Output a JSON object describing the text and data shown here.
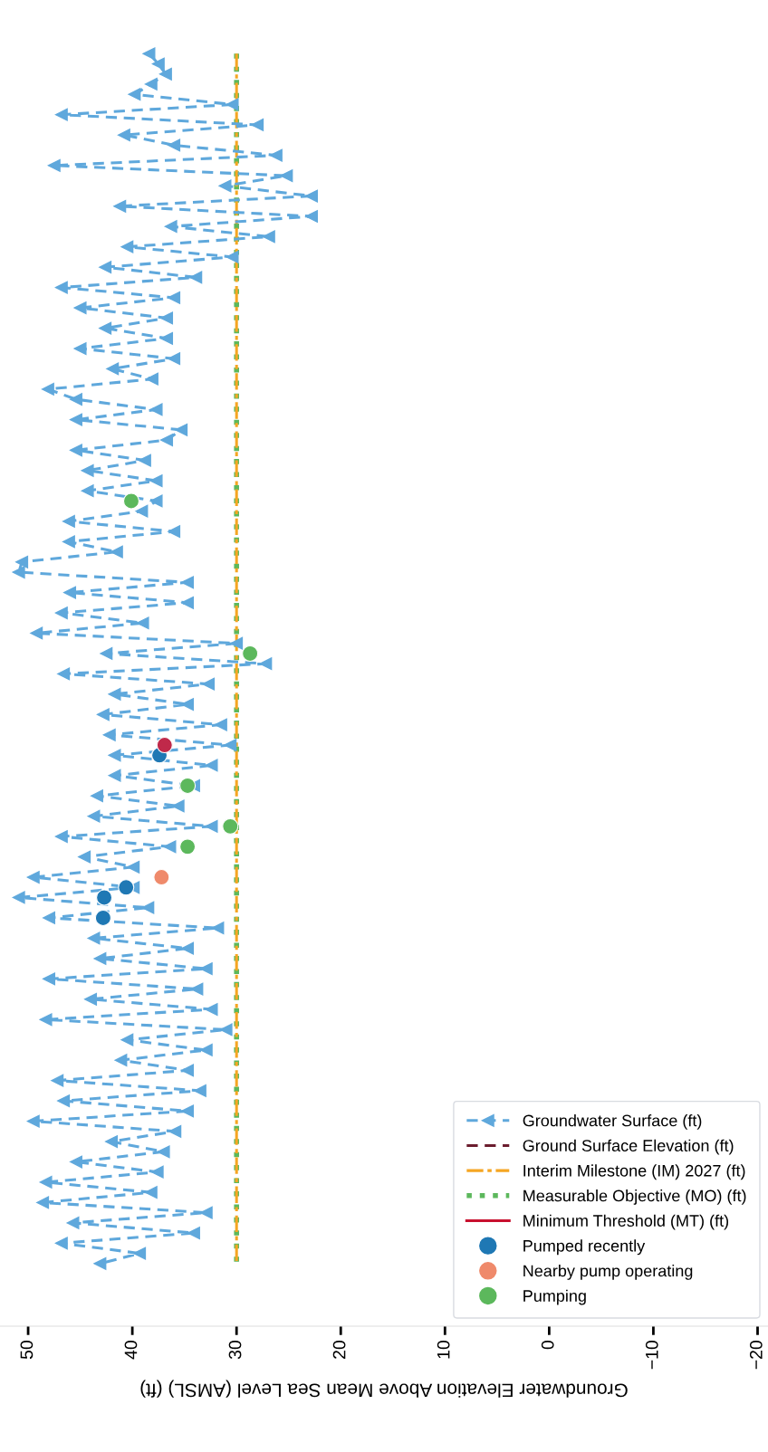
{
  "chart_data": {
    "type": "line",
    "orientation": "horizontal",
    "xlabel": "Groundwater Elevation Above Mean Sea Level (AMSL) (ft)",
    "categories": [
      null,
      null,
      null,
      null,
      null,
      null,
      null,
      null,
      null,
      null,
      null,
      null,
      null,
      null,
      null,
      null,
      null,
      null,
      null,
      null,
      null,
      null,
      null,
      null,
      null,
      null,
      null,
      null,
      null,
      null,
      null,
      null,
      null,
      null,
      null,
      null,
      null,
      null,
      null,
      null,
      null,
      null,
      null,
      null,
      null,
      null,
      null,
      null,
      null,
      null,
      null,
      null,
      null,
      null,
      null,
      null,
      null,
      null,
      null,
      null,
      null,
      null,
      null,
      null,
      null,
      null,
      null,
      null,
      null,
      null,
      null,
      null,
      null,
      null,
      null,
      null,
      null,
      null,
      null,
      null,
      null,
      null,
      null,
      null,
      null,
      null,
      null,
      null,
      null,
      null,
      null,
      null,
      null,
      null,
      null,
      null,
      null,
      null,
      null,
      null,
      null,
      null,
      null,
      null,
      null,
      null,
      null,
      null,
      null,
      null,
      null,
      null,
      null,
      null,
      null,
      null,
      null,
      null,
      null,
      null
    ],
    "xlim": [
      52.7,
      -21
    ],
    "xticks": [
      50,
      40,
      30,
      20,
      10,
      0,
      -10,
      -20
    ],
    "tick_labels": "x",
    "legend": "bottom right",
    "series": [
      {
        "name": "Groundwater Surface (ft)",
        "color": "#5fa8dc",
        "line_style": "dashed",
        "marker": "triangle",
        "values": [
          38.4,
          37.5,
          36.8,
          38.2,
          39.8,
          30.4,
          46.8,
          28.0,
          40.8,
          36.0,
          26.2,
          47.5,
          25.2,
          31.1,
          22.8,
          41.2,
          22.8,
          36.3,
          26.9,
          40.5,
          30.4,
          42.6,
          33.9,
          46.8,
          36.0,
          45.0,
          36.7,
          42.6,
          36.7,
          45.0,
          36.0,
          41.9,
          38.1,
          48.1,
          45.4,
          37.7,
          45.4,
          35.3,
          36.7,
          45.4,
          38.8,
          44.3,
          37.7,
          44.3,
          37.7,
          39.1,
          46.1,
          36.0,
          46.1,
          41.5,
          50.6,
          50.9,
          34.7,
          46.0,
          34.7,
          46.8,
          39.0,
          49.2,
          30.0,
          42.5,
          27.2,
          46.6,
          32.7,
          41.7,
          34.7,
          42.8,
          31.5,
          42.2,
          30.6,
          41.7,
          32.4,
          41.7,
          34.1,
          43.4,
          35.6,
          43.7,
          32.4,
          46.8,
          36.4,
          44.6,
          39.9,
          49.5,
          39.9,
          50.9,
          38.5,
          48.0,
          31.8,
          43.7,
          34.7,
          43.1,
          32.9,
          48.0,
          33.8,
          44.0,
          32.4,
          48.3,
          31.0,
          40.5,
          32.9,
          41.1,
          34.7,
          47.2,
          33.5,
          46.6,
          34.7,
          49.5,
          35.9,
          42.0,
          37.0,
          45.4,
          37.6,
          48.3,
          38.2,
          48.6,
          32.9,
          45.7,
          34.1,
          46.8,
          39.3,
          43.1
        ]
      },
      {
        "name": "Ground Surface Elevation (ft)",
        "color": "#6b1d2e",
        "line_style": "dashed",
        "values": [
          null,
          null,
          null,
          null,
          null,
          null,
          null,
          null,
          null,
          null,
          null,
          null,
          null,
          null,
          null,
          null,
          null,
          null,
          null,
          null,
          null,
          null,
          null,
          null,
          null,
          null,
          null,
          null,
          null,
          null,
          null,
          null,
          null,
          null,
          null,
          null,
          null,
          null,
          null,
          null,
          null,
          null,
          null,
          null,
          null,
          null,
          null,
          null,
          null,
          null,
          null,
          null,
          null,
          null,
          null,
          null,
          null,
          null,
          null,
          null,
          null,
          null,
          null,
          null,
          null,
          null,
          null,
          null,
          null,
          null,
          null,
          null,
          null,
          null,
          null,
          null,
          null,
          null,
          null,
          null,
          null,
          null,
          null,
          null,
          null,
          null,
          null,
          null,
          null,
          null,
          null,
          null,
          null,
          null,
          null,
          null,
          null,
          null,
          null,
          null,
          null,
          null,
          null,
          null,
          null,
          null,
          null,
          null,
          null,
          null,
          null,
          null,
          null,
          null,
          null,
          null,
          null,
          null,
          null,
          null
        ]
      },
      {
        "name": "Interim Milestone (IM) 2027 (ft)",
        "color": "#f5a623",
        "line_style": "dashdot",
        "values": [
          30,
          30,
          30,
          30,
          30,
          30,
          30,
          30,
          30,
          30,
          30,
          30,
          30,
          30,
          30,
          30,
          30,
          30,
          30,
          30,
          30,
          30,
          30,
          30,
          30,
          30,
          30,
          30,
          30,
          30,
          30,
          30,
          30,
          30,
          30,
          30,
          30,
          30,
          30,
          30,
          30,
          30,
          30,
          30,
          30,
          30,
          30,
          30,
          30,
          30,
          30,
          30,
          30,
          30,
          30,
          30,
          30,
          30,
          30,
          30,
          30,
          30,
          30,
          30,
          30,
          30,
          30,
          30,
          30,
          30,
          30,
          30,
          30,
          30,
          30,
          30,
          30,
          30,
          30,
          30,
          30,
          30,
          30,
          30,
          30,
          30,
          30,
          30,
          30,
          30,
          30,
          30,
          30,
          30,
          30,
          30,
          30,
          30,
          30,
          30,
          30,
          30,
          30,
          30,
          30,
          30,
          30,
          30,
          30,
          30,
          30,
          30,
          30,
          30,
          30,
          30,
          30,
          30,
          30,
          30
        ]
      },
      {
        "name": "Measurable Objective (MO) (ft)",
        "color": "#5cb85c",
        "line_style": "dotted",
        "values": [
          30,
          30,
          30,
          30,
          30,
          30,
          30,
          30,
          30,
          30,
          30,
          30,
          30,
          30,
          30,
          30,
          30,
          30,
          30,
          30,
          30,
          30,
          30,
          30,
          30,
          30,
          30,
          30,
          30,
          30,
          30,
          30,
          30,
          30,
          30,
          30,
          30,
          30,
          30,
          30,
          30,
          30,
          30,
          30,
          30,
          30,
          30,
          30,
          30,
          30,
          30,
          30,
          30,
          30,
          30,
          30,
          30,
          30,
          30,
          30,
          30,
          30,
          30,
          30,
          30,
          30,
          30,
          30,
          30,
          30,
          30,
          30,
          30,
          30,
          30,
          30,
          30,
          30,
          30,
          30,
          30,
          30,
          30,
          30,
          30,
          30,
          30,
          30,
          30,
          30,
          30,
          30,
          30,
          30,
          30,
          30,
          30,
          30,
          30,
          30,
          30,
          30,
          30,
          30,
          30,
          30,
          30,
          30,
          30,
          30,
          30,
          30,
          30,
          30,
          30,
          30,
          30,
          30,
          30,
          30
        ]
      },
      {
        "name": "Minimum Threshold (MT) (ft)",
        "color": "#c8102e",
        "line_style": "solid",
        "values": [
          null,
          null,
          null,
          null,
          null,
          null,
          null,
          null,
          null,
          null,
          null,
          null,
          null,
          null,
          null,
          null,
          null,
          null,
          null,
          null,
          null,
          null,
          null,
          null,
          null,
          null,
          null,
          null,
          null,
          null,
          null,
          null,
          null,
          null,
          null,
          null,
          null,
          null,
          null,
          null,
          null,
          null,
          null,
          null,
          null,
          null,
          null,
          null,
          null,
          null,
          null,
          null,
          null,
          null,
          null,
          null,
          null,
          null,
          null,
          null,
          null,
          null,
          null,
          null,
          null,
          null,
          null,
          null,
          null,
          null,
          null,
          null,
          null,
          null,
          null,
          null,
          null,
          null,
          null,
          null,
          null,
          null,
          null,
          null,
          null,
          null,
          null,
          null,
          null,
          null,
          null,
          null,
          null,
          null,
          null,
          null,
          null,
          null,
          null,
          null,
          null,
          null,
          null,
          null,
          null,
          null,
          null,
          null,
          null,
          null,
          null,
          null,
          null,
          null,
          null,
          null,
          null,
          null,
          null,
          null
        ]
      },
      {
        "name": "Pumped recently",
        "type": "scatter",
        "color": "#1f78b4",
        "values": [
          null,
          null,
          null,
          null,
          null,
          null,
          null,
          null,
          null,
          null,
          null,
          null,
          null,
          null,
          null,
          null,
          null,
          null,
          null,
          null,
          null,
          null,
          null,
          null,
          null,
          null,
          null,
          null,
          null,
          null,
          null,
          null,
          null,
          null,
          null,
          null,
          null,
          null,
          null,
          null,
          null,
          null,
          null,
          null,
          null,
          null,
          null,
          null,
          null,
          null,
          null,
          null,
          null,
          null,
          null,
          null,
          null,
          null,
          null,
          null,
          null,
          null,
          null,
          null,
          null,
          null,
          null,
          null,
          null,
          37.4,
          null,
          null,
          null,
          null,
          null,
          null,
          null,
          null,
          null,
          null,
          null,
          null,
          40.6,
          42.7,
          null,
          42.8,
          null,
          null,
          null,
          null,
          null,
          null,
          null,
          null,
          null,
          null,
          null,
          null,
          null,
          null,
          null,
          null,
          null,
          null,
          null,
          null,
          null,
          null,
          null,
          null,
          null,
          null,
          null,
          null,
          null,
          null,
          null,
          null,
          null,
          null
        ]
      },
      {
        "name": "Nearby pump operating",
        "type": "scatter",
        "color": "#ef8a6b",
        "values": [
          null,
          null,
          null,
          null,
          null,
          null,
          null,
          null,
          null,
          null,
          null,
          null,
          null,
          null,
          null,
          null,
          null,
          null,
          null,
          null,
          null,
          null,
          null,
          null,
          null,
          null,
          null,
          null,
          null,
          null,
          null,
          null,
          null,
          null,
          null,
          null,
          null,
          null,
          null,
          null,
          null,
          null,
          null,
          null,
          null,
          null,
          null,
          null,
          null,
          null,
          null,
          null,
          null,
          null,
          null,
          null,
          null,
          null,
          null,
          null,
          null,
          null,
          null,
          null,
          null,
          null,
          null,
          null,
          null,
          null,
          null,
          null,
          null,
          null,
          null,
          null,
          null,
          null,
          null,
          null,
          null,
          37.2,
          null,
          null,
          null,
          null,
          null,
          null,
          null,
          null,
          null,
          null,
          null,
          null,
          null,
          null,
          null,
          null,
          null,
          null,
          null,
          null,
          null,
          null,
          null,
          null,
          null,
          null,
          null,
          null,
          null,
          null,
          null,
          null,
          null,
          null,
          null,
          null,
          null,
          null
        ]
      },
      {
        "name": "Pumping",
        "type": "scatter",
        "color": "#5cb85c",
        "values": [
          null,
          null,
          null,
          null,
          null,
          null,
          null,
          null,
          null,
          null,
          null,
          null,
          null,
          null,
          null,
          null,
          null,
          null,
          null,
          null,
          null,
          null,
          null,
          null,
          null,
          null,
          null,
          null,
          null,
          null,
          null,
          null,
          null,
          null,
          null,
          null,
          null,
          null,
          null,
          null,
          null,
          null,
          null,
          null,
          40.1,
          null,
          null,
          null,
          null,
          null,
          null,
          null,
          null,
          null,
          null,
          null,
          null,
          null,
          null,
          28.7,
          null,
          null,
          null,
          null,
          null,
          null,
          null,
          null,
          null,
          null,
          null,
          null,
          34.7,
          null,
          null,
          null,
          30.6,
          null,
          34.7,
          null,
          null,
          null,
          null,
          null,
          null,
          null,
          null,
          null,
          null,
          null,
          null,
          null,
          null,
          null,
          null,
          null,
          null,
          null,
          null,
          null,
          null,
          null,
          null,
          null,
          null,
          null,
          null,
          null,
          null,
          null,
          null,
          null,
          null,
          null,
          null,
          null,
          null,
          null,
          null,
          null
        ]
      },
      {
        "type": "scatter",
        "color": "#c0294a",
        "values": [
          null,
          null,
          null,
          null,
          null,
          null,
          null,
          null,
          null,
          null,
          null,
          null,
          null,
          null,
          null,
          null,
          null,
          null,
          null,
          null,
          null,
          null,
          null,
          null,
          null,
          null,
          null,
          null,
          null,
          null,
          null,
          null,
          null,
          null,
          null,
          null,
          null,
          null,
          null,
          null,
          null,
          null,
          null,
          null,
          null,
          null,
          null,
          null,
          null,
          null,
          null,
          null,
          null,
          null,
          null,
          null,
          null,
          null,
          null,
          null,
          null,
          null,
          null,
          null,
          null,
          null,
          null,
          null,
          36.9,
          null,
          null,
          null,
          null,
          null,
          null,
          null,
          null,
          null,
          null,
          null,
          null,
          null,
          null,
          null,
          null,
          null,
          null,
          null,
          null,
          null,
          null,
          null,
          null,
          null,
          null,
          null,
          null,
          null,
          null,
          null,
          null,
          null,
          null,
          null,
          null,
          null,
          null,
          null,
          null,
          null,
          null,
          null,
          null,
          null,
          null,
          null,
          null,
          null,
          null,
          null
        ]
      }
    ]
  }
}
